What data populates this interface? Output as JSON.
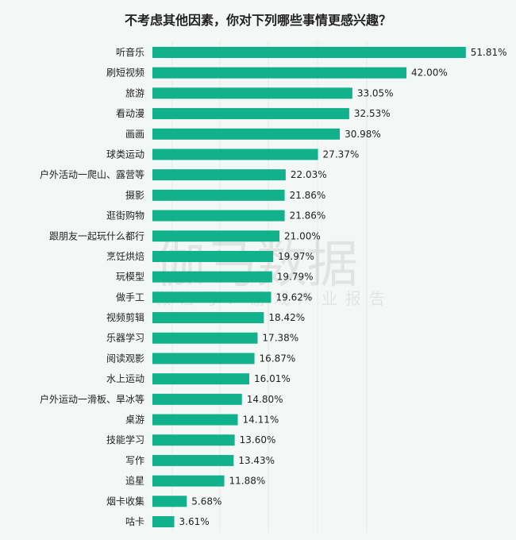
{
  "chart_data": {
    "type": "bar",
    "orientation": "horizontal",
    "title": "不考虑其他因素，你对下列哪些事情更感兴趣？",
    "categories": [
      "听音乐",
      "刷短视频",
      "旅游",
      "看动漫",
      "画画",
      "球类运动",
      "户外活动一爬山、露营等",
      "摄影",
      "逛街购物",
      "跟朋友一起玩什么都行",
      "烹饪烘焙",
      "玩模型",
      "做手工",
      "视频剪辑",
      "乐器学习",
      "阅读观影",
      "水上运动",
      "户外运动一滑板、旱冰等",
      "桌游",
      "技能学习",
      "写作",
      "追星",
      "烟卡收集",
      "咕卡"
    ],
    "values": [
      51.81,
      42.0,
      33.05,
      32.53,
      30.98,
      27.37,
      22.03,
      21.86,
      21.86,
      21.0,
      19.97,
      19.79,
      19.62,
      18.42,
      17.38,
      16.87,
      16.01,
      14.8,
      14.11,
      13.6,
      13.43,
      11.88,
      5.68,
      3.61
    ],
    "value_labels": [
      "51.81%",
      "42.00%",
      "33.05%",
      "32.53%",
      "30.98%",
      "27.37%",
      "22.03%",
      "21.86%",
      "21.86%",
      "21.00%",
      "19.97%",
      "19.79%",
      "19.62%",
      "18.42%",
      "17.38%",
      "16.87%",
      "16.01%",
      "14.80%",
      "14.11%",
      "13.60%",
      "13.43%",
      "11.88%",
      "5.68%",
      "3.61%"
    ],
    "unit": "%",
    "grid": true,
    "legend": "none",
    "bar_color": "#11b28b",
    "background": "#f3f7f5"
  },
  "watermark": {
    "main": "伽马数据",
    "sub": "微信号：游戏产业报告"
  }
}
